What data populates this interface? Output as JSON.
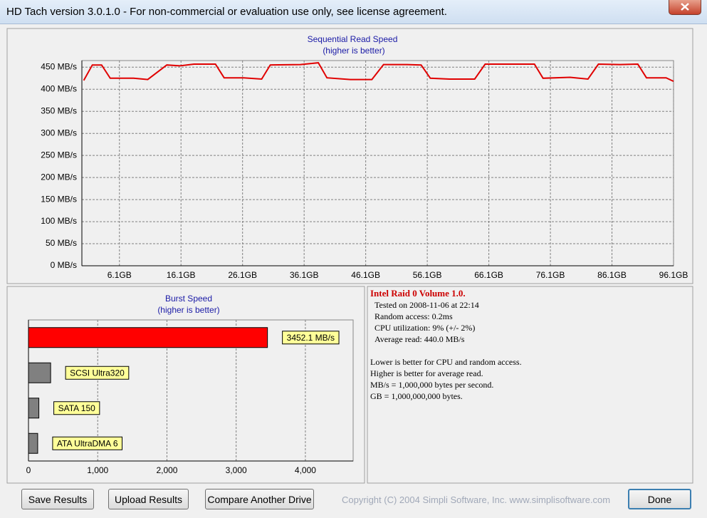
{
  "window": {
    "title": "HD Tach version 3.0.1.0  - For non-commercial or evaluation use only, see license agreement.",
    "buttons": [
      "Save Results",
      "Upload Results",
      "Compare Another Drive",
      "Done"
    ],
    "copyright": "Copyright (C) 2004 Simpli Software, Inc. www.simplisoftware.com"
  },
  "info": {
    "heading": "Intel Raid 0 Volume 1.0.",
    "lines": [
      "Tested on 2008-11-06 at 22:14",
      "Random access: 0.2ms",
      "CPU utilization: 9% (+/- 2%)",
      "Average read: 440.0 MB/s"
    ],
    "notes": [
      "Lower is better for CPU and random access.",
      "Higher is better for average read.",
      "MB/s = 1,000,000 bytes per second.",
      "GB = 1,000,000,000 bytes."
    ]
  },
  "chart_data": [
    {
      "type": "line",
      "title": "Sequential Read Speed",
      "subtitle": "(higher is better)",
      "color": "#e00000",
      "grid": true,
      "x": [
        0.3,
        1.7,
        3.2,
        4.6,
        8.4,
        10.7,
        13.8,
        15.9,
        18.2,
        21.7,
        23.1,
        26.3,
        29.2,
        30.6,
        35.5,
        38.4,
        39.8,
        43.6,
        47.1,
        49.0,
        52.8,
        55.1,
        56.6,
        59.7,
        63.8,
        65.5,
        70.1,
        73.5,
        74.9,
        79.3,
        82.2,
        83.9,
        87.4,
        90.3,
        91.7,
        94.9,
        96.1
      ],
      "values": [
        420,
        455,
        455,
        425,
        425,
        422,
        455,
        453,
        457,
        457,
        426,
        426,
        423,
        455,
        456,
        460,
        426,
        422,
        422,
        456,
        456,
        455,
        425,
        423,
        423,
        457,
        457,
        457,
        425,
        427,
        423,
        457,
        456,
        457,
        426,
        426,
        418
      ],
      "xlim": [
        0,
        96.1
      ],
      "xticks": [
        {
          "value": 6.1,
          "label": "6.1GB"
        },
        {
          "value": 16.1,
          "label": "16.1GB"
        },
        {
          "value": 26.1,
          "label": "26.1GB"
        },
        {
          "value": 36.1,
          "label": "36.1GB"
        },
        {
          "value": 46.1,
          "label": "46.1GB"
        },
        {
          "value": 56.1,
          "label": "56.1GB"
        },
        {
          "value": 66.1,
          "label": "66.1GB"
        },
        {
          "value": 76.1,
          "label": "76.1GB"
        },
        {
          "value": 86.1,
          "label": "86.1GB"
        },
        {
          "value": 96.1,
          "label": "96.1GB"
        }
      ],
      "ylim": [
        0,
        465
      ],
      "yticks": [
        {
          "value": 0,
          "label": "0 MB/s"
        },
        {
          "value": 50,
          "label": "50 MB/s"
        },
        {
          "value": 100,
          "label": "100 MB/s"
        },
        {
          "value": 150,
          "label": "150 MB/s"
        },
        {
          "value": 200,
          "label": "200 MB/s"
        },
        {
          "value": 250,
          "label": "250 MB/s"
        },
        {
          "value": 300,
          "label": "300 MB/s"
        },
        {
          "value": 350,
          "label": "350 MB/s"
        },
        {
          "value": 400,
          "label": "400 MB/s"
        },
        {
          "value": 450,
          "label": "450 MB/s"
        }
      ]
    },
    {
      "type": "bar",
      "orientation": "horizontal",
      "title": "Burst Speed",
      "subtitle": "(higher is better)",
      "grid": true,
      "categories": [
        null,
        "SCSI Ultra320",
        "SATA 150",
        "ATA UltraDMA 6"
      ],
      "values": [
        3452.1,
        320,
        150,
        133
      ],
      "value_labels": [
        "3452.1 MB/s",
        null,
        null,
        null
      ],
      "colors": [
        "#ff0000",
        "#808080",
        "#808080",
        "#808080"
      ],
      "xlim": [
        0,
        4690
      ],
      "xticks": [
        0,
        {
          "value": 1000,
          "label": "1,000"
        },
        {
          "value": 2000,
          "label": "2,000"
        },
        {
          "value": 3000,
          "label": "3,000"
        },
        {
          "value": 4000,
          "label": "4,000"
        }
      ]
    }
  ]
}
